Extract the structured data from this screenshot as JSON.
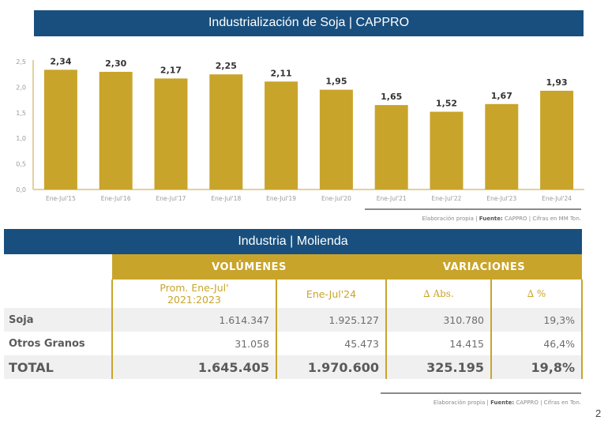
{
  "chart_data": {
    "type": "bar",
    "title": "Industrialización de Soja | CAPPRO",
    "categories": [
      "Ene-Jul'15",
      "Ene-Jul'16",
      "Ene-Jul'17",
      "Ene-Jul'18",
      "Ene-Jul'19",
      "Ene-Jul'20",
      "Ene-Jul'21",
      "Ene-Jul'22",
      "Ene-Jul'23",
      "Ene-Jul'24"
    ],
    "values": [
      2.34,
      2.3,
      2.17,
      2.25,
      2.11,
      1.95,
      1.65,
      1.52,
      1.67,
      1.93
    ],
    "value_labels": [
      "2,34",
      "2,30",
      "2,17",
      "2,25",
      "2,11",
      "1,95",
      "1,65",
      "1,52",
      "1,67",
      "1,93"
    ],
    "yticks": [
      0,
      0.5,
      1.0,
      1.5,
      2.0,
      2.5
    ],
    "ytick_labels": [
      "0,0",
      "0,5",
      "1,0",
      "1,5",
      "2,0",
      "2,5"
    ],
    "ylim": [
      0,
      2.5
    ],
    "xlabel": "",
    "ylabel": "",
    "grid": false,
    "legend": "none",
    "bar_color": "#c9a42a"
  },
  "chart_note": {
    "prefix": "Elaboración propia | ",
    "source_label": "Fuente:",
    "suffix": " CAPPRO | Cifras en MM Ton."
  },
  "table": {
    "title": "Industria | Molienda",
    "groups": [
      "VOLÚMENES",
      "VARIACIONES"
    ],
    "columns": [
      "Prom. Ene-Jul' 2021:2023",
      "Ene-Jul'24",
      "∆ Abs.",
      "∆ %"
    ],
    "rows": [
      {
        "label": "Soja",
        "values": [
          "1.614.347",
          "1.925.127",
          "310.780",
          "19,3%"
        ]
      },
      {
        "label": "Otros Granos",
        "values": [
          "31.058",
          "45.473",
          "14.415",
          "46,4%"
        ]
      },
      {
        "label": "TOTAL",
        "values": [
          "1.645.405",
          "1.970.600",
          "325.195",
          "19,8%"
        ]
      }
    ],
    "accent_color": "#c9a42a",
    "banner_color": "#184f7e"
  },
  "table_note": {
    "prefix": "Elaboración propia | ",
    "source_label": "Fuente:",
    "suffix": " CAPPRO | Cifras en Ton."
  },
  "page_number": "2"
}
